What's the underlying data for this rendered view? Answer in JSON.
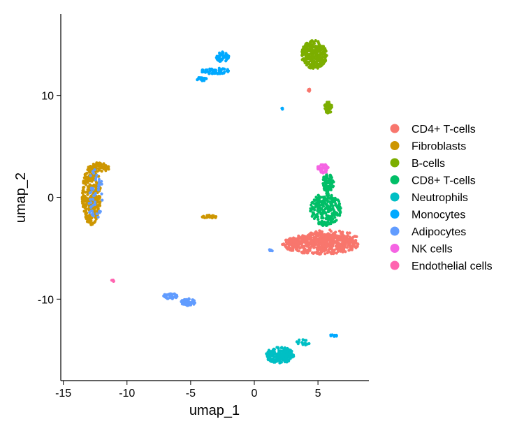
{
  "chart_data": {
    "type": "scatter",
    "title": "",
    "xlabel": "umap_1",
    "ylabel": "umap_2",
    "xlim": [
      -15.2,
      9
    ],
    "ylim": [
      -18,
      18
    ],
    "xticks": [
      -15,
      -10,
      -5,
      0,
      5
    ],
    "xtick_labels": [
      "-15",
      "-10",
      "-5",
      "0",
      "5"
    ],
    "yticks": [
      10,
      0,
      -10
    ],
    "ytick_labels": [
      "10",
      "0",
      "-10"
    ],
    "grid": false,
    "legend_position": "right",
    "series": [
      {
        "name": "CD4+ T-cells",
        "color": "#F8766D",
        "clusters": [
          {
            "cx": 5.2,
            "cy": -4.6,
            "rx": 3.0,
            "ry": 1.0,
            "n": 460
          },
          {
            "cx": 5.8,
            "cy": -4.0,
            "rx": 2.3,
            "ry": 0.8,
            "n": 180
          },
          {
            "cx": 4.3,
            "cy": 10.4,
            "rx": 0.08,
            "ry": 0.25,
            "n": 6
          }
        ]
      },
      {
        "name": "Fibroblasts",
        "color": "#CD9600",
        "clusters": [
          {
            "cx": -12.8,
            "cy": 0.2,
            "rx": 0.75,
            "ry": 2.9,
            "n": 280
          },
          {
            "cx": -12.3,
            "cy": 2.9,
            "rx": 0.9,
            "ry": 0.5,
            "n": 70
          },
          {
            "cx": -3.5,
            "cy": -1.9,
            "rx": 0.6,
            "ry": 0.15,
            "n": 22
          }
        ]
      },
      {
        "name": "B-cells",
        "color": "#7CAE00",
        "clusters": [
          {
            "cx": 4.7,
            "cy": 14.0,
            "rx": 1.0,
            "ry": 1.4,
            "n": 300
          },
          {
            "cx": 5.8,
            "cy": 8.8,
            "rx": 0.3,
            "ry": 0.6,
            "n": 40
          }
        ]
      },
      {
        "name": "CD8+ T-cells",
        "color": "#00BE67",
        "clusters": [
          {
            "cx": 5.6,
            "cy": -1.2,
            "rx": 1.2,
            "ry": 1.6,
            "n": 230
          },
          {
            "cx": 5.8,
            "cy": 1.4,
            "rx": 0.45,
            "ry": 0.9,
            "n": 80
          }
        ]
      },
      {
        "name": "Neutrophils",
        "color": "#00BFC4",
        "clusters": [
          {
            "cx": 2.0,
            "cy": -15.5,
            "rx": 1.1,
            "ry": 0.8,
            "n": 220
          },
          {
            "cx": 3.8,
            "cy": -14.3,
            "rx": 0.6,
            "ry": 0.35,
            "n": 14
          }
        ]
      },
      {
        "name": "Monocytes",
        "color": "#00A9FF",
        "clusters": [
          {
            "cx": -3.0,
            "cy": 12.4,
            "rx": 1.2,
            "ry": 0.3,
            "n": 60
          },
          {
            "cx": -2.5,
            "cy": 13.8,
            "rx": 0.5,
            "ry": 0.5,
            "n": 45
          },
          {
            "cx": -4.1,
            "cy": 11.6,
            "rx": 0.4,
            "ry": 0.2,
            "n": 25
          },
          {
            "cx": 6.2,
            "cy": -13.6,
            "rx": 0.3,
            "ry": 0.12,
            "n": 12
          },
          {
            "cx": 2.2,
            "cy": 8.7,
            "rx": 0.06,
            "ry": 0.06,
            "n": 4
          }
        ]
      },
      {
        "name": "Adipocytes",
        "color": "#619CFF",
        "clusters": [
          {
            "cx": -6.6,
            "cy": -9.7,
            "rx": 0.55,
            "ry": 0.3,
            "n": 40
          },
          {
            "cx": -5.2,
            "cy": -10.3,
            "rx": 0.55,
            "ry": 0.35,
            "n": 55
          },
          {
            "cx": -12.5,
            "cy": 0.2,
            "rx": 0.6,
            "ry": 2.6,
            "n": 50
          },
          {
            "cx": 1.3,
            "cy": -5.2,
            "rx": 0.15,
            "ry": 0.1,
            "n": 6
          }
        ]
      },
      {
        "name": "NK cells",
        "color": "#F564E3",
        "clusters": [
          {
            "cx": 5.4,
            "cy": 2.8,
            "rx": 0.45,
            "ry": 0.45,
            "n": 40
          }
        ]
      },
      {
        "name": "Endothelial cells",
        "color": "#FF64B0",
        "clusters": [
          {
            "cx": -11.1,
            "cy": -8.2,
            "rx": 0.15,
            "ry": 0.08,
            "n": 6
          }
        ]
      }
    ]
  }
}
